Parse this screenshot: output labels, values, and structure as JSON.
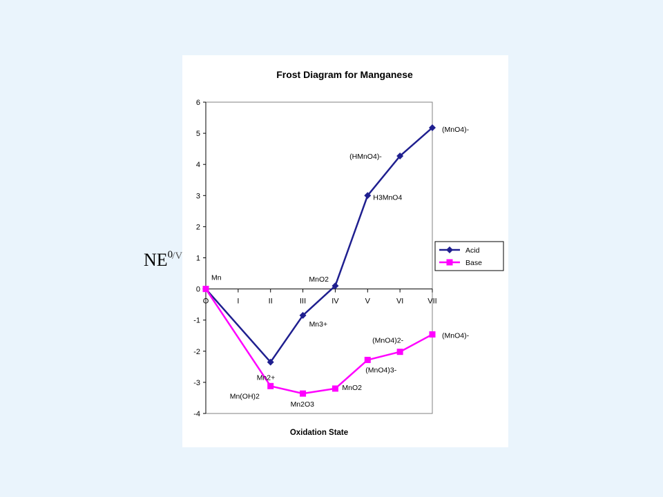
{
  "chart_data": {
    "type": "line",
    "title": "Frost Diagram for Manganese",
    "xlabel": "Oxidation State",
    "ylabel": "NE",
    "ylabel_sup": "0",
    "ylabel_trail": "/V",
    "categories": [
      "O",
      "I",
      "II",
      "III",
      "IV",
      "V",
      "VI",
      "VII"
    ],
    "ylim": [
      -4,
      6
    ],
    "yticks": [
      -4,
      -3,
      -2,
      -1,
      0,
      1,
      2,
      3,
      4,
      5,
      6
    ],
    "grid": false,
    "legend_position": "right",
    "series": [
      {
        "name": "Acid",
        "color": "#1f1f8f",
        "marker": "diamond",
        "points": [
          {
            "x": 0,
            "y": 0,
            "label": "Mn"
          },
          {
            "x": 2,
            "y": -2.35,
            "label": "Mn2+"
          },
          {
            "x": 3,
            "y": -0.85,
            "label": "Mn3+"
          },
          {
            "x": 4,
            "y": 0.1,
            "label": "MnO2"
          },
          {
            "x": 5,
            "y": 3.0,
            "label": "H3MnO4"
          },
          {
            "x": 6,
            "y": 4.27,
            "label": "(HMnO4)-"
          },
          {
            "x": 7,
            "y": 5.18,
            "label": "(MnO4)-"
          }
        ]
      },
      {
        "name": "Base",
        "color": "#ff00ff",
        "marker": "square",
        "points": [
          {
            "x": 0,
            "y": 0,
            "label": ""
          },
          {
            "x": 2,
            "y": -3.12,
            "label": "Mn(OH)2"
          },
          {
            "x": 3,
            "y": -3.36,
            "label": "Mn2O3"
          },
          {
            "x": 4,
            "y": -3.2,
            "label": "MnO2"
          },
          {
            "x": 5,
            "y": -2.28,
            "label": "(MnO4)3-"
          },
          {
            "x": 6,
            "y": -2.02,
            "label": "(MnO4)2-"
          },
          {
            "x": 7,
            "y": -1.46,
            "label": "(MnO4)-"
          }
        ]
      }
    ]
  }
}
